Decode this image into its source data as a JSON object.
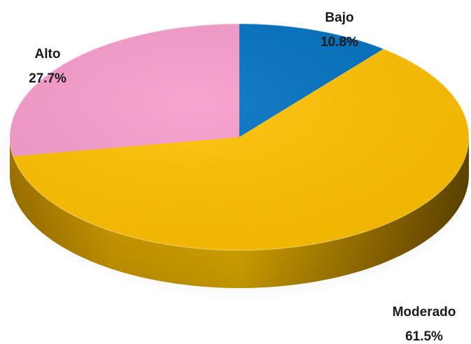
{
  "chart_data": {
    "type": "pie",
    "style": "3d",
    "title": "",
    "slices": [
      {
        "label": "Bajo",
        "value": 10.8,
        "value_label": "10.8%",
        "color": "#0070c0"
      },
      {
        "label": "Moderado",
        "value": 61.5,
        "value_label": "61.5%",
        "color": "#ffc000"
      },
      {
        "label": "Alto",
        "value": 27.7,
        "value_label": "27.7%",
        "color": "#f79bcb"
      }
    ],
    "legend": "none"
  }
}
